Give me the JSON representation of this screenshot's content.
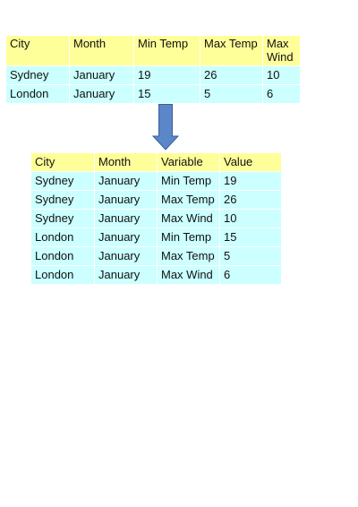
{
  "wide_table": {
    "headers": [
      "City",
      "Month",
      "Min Temp",
      "Max Temp",
      "Max Wind"
    ],
    "rows": [
      [
        "Sydney",
        "January",
        "19",
        "26",
        "10"
      ],
      [
        "London",
        "January",
        "15",
        "5",
        "6"
      ]
    ]
  },
  "arrow_icon": "down-arrow-icon",
  "colors": {
    "header_bg": "#ffff99",
    "cell_bg": "#ccffff",
    "arrow_fill": "#5b86c8",
    "arrow_stroke": "#3a5f95"
  },
  "long_table": {
    "headers": [
      "City",
      "Month",
      "Variable",
      "Value"
    ],
    "rows": [
      [
        "Sydney",
        "January",
        "Min Temp",
        "19"
      ],
      [
        "Sydney",
        "January",
        "Max Temp",
        "26"
      ],
      [
        "Sydney",
        "January",
        "Max Wind",
        "10"
      ],
      [
        "London",
        "January",
        "Min Temp",
        "15"
      ],
      [
        "London",
        "January",
        "Max Temp",
        "5"
      ],
      [
        "London",
        "January",
        "Max Wind",
        "6"
      ]
    ]
  }
}
